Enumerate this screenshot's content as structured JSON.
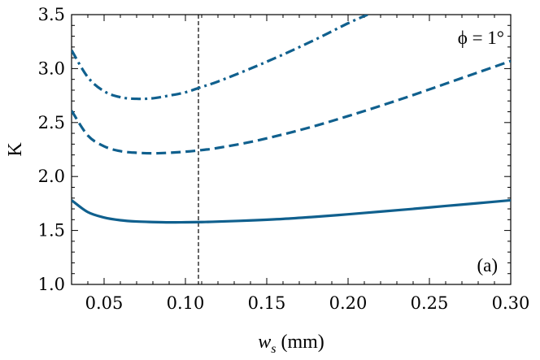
{
  "chart_data": {
    "type": "line",
    "title": "",
    "xlabel_main": "w",
    "xlabel_sub": "s",
    "xlabel_unit": " (mm)",
    "ylabel": "K",
    "xlim": [
      0.03,
      0.3
    ],
    "ylim": [
      1.0,
      3.5
    ],
    "xticks": [
      "0.05",
      "0.10",
      "0.15",
      "0.20",
      "0.25",
      "0.30"
    ],
    "xtick_values": [
      0.05,
      0.1,
      0.15,
      0.2,
      0.25,
      0.3
    ],
    "yticks": [
      "1.0",
      "1.5",
      "2.0",
      "2.5",
      "3.0",
      "3.5"
    ],
    "ytick_values": [
      1.0,
      1.5,
      2.0,
      2.5,
      3.0,
      3.5
    ],
    "vline_x": 0.108,
    "annotation_phi": "ϕ = 1°",
    "panel_label": "(a)",
    "series": [
      {
        "name": "solid",
        "style": "solid",
        "x": [
          0.03,
          0.04,
          0.05,
          0.06,
          0.07,
          0.08,
          0.09,
          0.1,
          0.11,
          0.12,
          0.14,
          0.16,
          0.18,
          0.2,
          0.22,
          0.24,
          0.26,
          0.28,
          0.3
        ],
        "y": [
          1.78,
          1.67,
          1.62,
          1.595,
          1.583,
          1.578,
          1.575,
          1.576,
          1.578,
          1.582,
          1.593,
          1.607,
          1.627,
          1.65,
          1.675,
          1.7,
          1.727,
          1.753,
          1.78
        ]
      },
      {
        "name": "dashed",
        "style": "dashed",
        "x": [
          0.03,
          0.04,
          0.05,
          0.06,
          0.07,
          0.08,
          0.09,
          0.1,
          0.11,
          0.12,
          0.14,
          0.16,
          0.18,
          0.2,
          0.22,
          0.24,
          0.26,
          0.28,
          0.3
        ],
        "y": [
          2.61,
          2.38,
          2.28,
          2.235,
          2.22,
          2.215,
          2.22,
          2.23,
          2.245,
          2.265,
          2.32,
          2.39,
          2.47,
          2.56,
          2.655,
          2.755,
          2.86,
          2.965,
          3.07
        ]
      },
      {
        "name": "dash-dot",
        "style": "dashdot",
        "x": [
          0.03,
          0.04,
          0.05,
          0.06,
          0.07,
          0.08,
          0.09,
          0.1,
          0.11,
          0.12,
          0.14,
          0.16,
          0.18,
          0.2,
          0.212
        ],
        "y": [
          3.17,
          2.92,
          2.79,
          2.735,
          2.72,
          2.725,
          2.75,
          2.78,
          2.83,
          2.88,
          3.0,
          3.13,
          3.27,
          3.42,
          3.5
        ]
      }
    ]
  }
}
